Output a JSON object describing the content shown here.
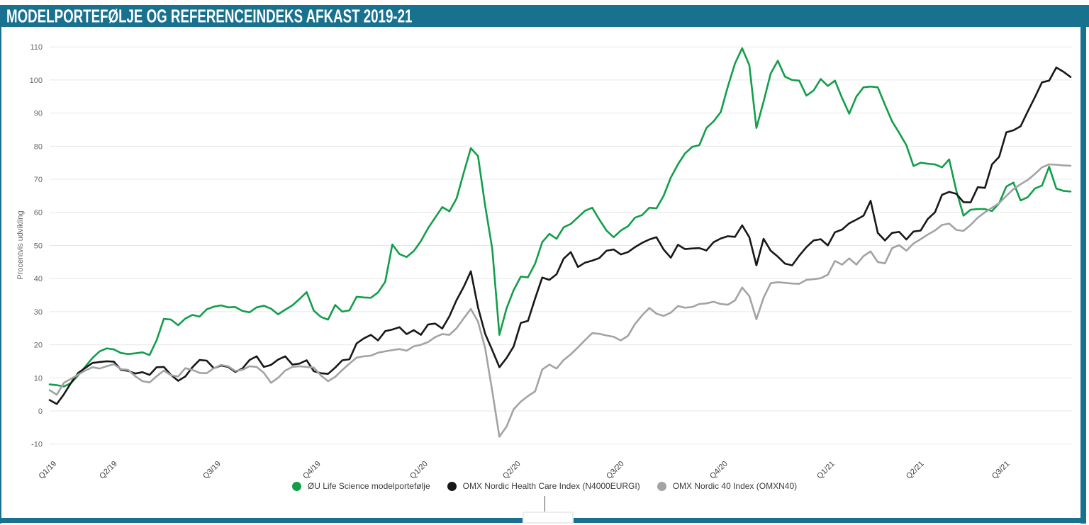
{
  "header": {
    "title": "MODELPORTEFØLJE OG REFERENCEINDEKS AFKAST 2019-21"
  },
  "colors": {
    "frame_teal": "#17718f",
    "green": "#129e4a",
    "black": "#181818",
    "gray": "#a3a3a3",
    "gridline": "#e7e7e7",
    "y_axis_text": "#666666",
    "x_axis_text": "#3c3c3c"
  },
  "chart_data": {
    "type": "line",
    "title": "MODELPORTEFØLJE OG REFERENCEINDEKS AFKAST 2019-21",
    "ylabel": "Procentvis udvikling",
    "xlabel": "",
    "ylim": [
      -10,
      110
    ],
    "yticks": [
      -10,
      0,
      10,
      20,
      30,
      40,
      50,
      60,
      70,
      80,
      90,
      100,
      110
    ],
    "grid": "horizontal",
    "legend_position": "bottom",
    "x_tick_labels": [
      "Q1/19",
      "Q2/19",
      "Q3/19",
      "Q4/19",
      "Q1/20",
      "Q2/20",
      "Q3/20",
      "Q4/20",
      "Q1/21",
      "Q2/21",
      "Q3/21"
    ],
    "x_tick_indices": [
      1,
      9.5,
      24,
      38,
      53,
      66,
      80.5,
      95,
      110,
      122.5,
      134.5
    ],
    "series": [
      {
        "name": "ØU Life Science modelportefølje",
        "color": "#129e4a",
        "values": [
          8,
          7.8,
          7.4,
          8.4,
          10.8,
          13.4,
          16,
          18,
          18.9,
          18.6,
          17.5,
          17.2,
          17.4,
          17.7,
          16.9,
          21.4,
          27.8,
          27.6,
          25.9,
          27.9,
          29,
          28.5,
          30.7,
          31.5,
          31.9,
          31.3,
          31.4,
          30.2,
          29.8,
          31.3,
          31.8,
          30.9,
          29.2,
          30.6,
          31.9,
          33.8,
          35.9,
          30.3,
          28.4,
          27.6,
          32,
          30,
          30.4,
          34.5,
          34.3,
          34.2,
          35.8,
          39,
          50.3,
          47.4,
          46.5,
          48.3,
          51.3,
          55.2,
          58.4,
          61.6,
          60.3,
          64.2,
          72,
          79.4,
          77,
          62,
          49,
          23,
          31,
          36.5,
          40.6,
          40.4,
          44.5,
          51,
          53.5,
          52,
          55.5,
          56.5,
          58.5,
          60.5,
          61.4,
          57.8,
          54.5,
          52.5,
          54.5,
          55.8,
          58.4,
          59.2,
          61.4,
          61.2,
          65,
          70.5,
          74.5,
          77.8,
          79.8,
          80.3,
          85.5,
          87.5,
          90.3,
          98,
          105,
          109.6,
          104.5,
          85.5,
          93.5,
          102,
          105.8,
          101,
          100,
          99.8,
          95.3,
          96.8,
          100.3,
          98.2,
          99.8,
          94.5,
          89.8,
          95,
          97.8,
          98,
          97.8,
          92.5,
          87.5,
          84,
          80.3,
          74,
          75,
          74.7,
          74.5,
          73.6,
          76,
          66.5,
          59,
          60.8,
          61,
          61,
          60.4,
          62.8,
          67.8,
          69,
          63.6,
          64.6,
          67.2,
          68.1,
          73.8,
          67.2,
          66.5,
          66.3
        ]
      },
      {
        "name": "OMX Nordic Health Care Index (N4000EURGI)",
        "color": "#181818",
        "values": [
          3.3,
          2.1,
          5,
          8.5,
          11.5,
          13,
          14.5,
          14.8,
          15,
          14.9,
          12.4,
          12.1,
          11.3,
          11.7,
          10.9,
          13.2,
          13.3,
          10.9,
          9.1,
          10.4,
          13.2,
          15.4,
          15.2,
          12.9,
          13.7,
          13.3,
          11.8,
          12.8,
          15.4,
          16.5,
          13.3,
          13.9,
          15.5,
          16.5,
          14,
          14.3,
          15.3,
          12,
          11.4,
          11.2,
          13.1,
          15.3,
          15.6,
          20.4,
          21.9,
          23,
          21.3,
          24.1,
          24.6,
          25.3,
          23.2,
          24.4,
          23,
          26.1,
          26.4,
          24.9,
          28.6,
          33.5,
          37.5,
          42.2,
          31.3,
          23.3,
          18.4,
          13.2,
          16,
          19.5,
          26.6,
          27.2,
          34,
          40.3,
          39.6,
          41.3,
          46,
          48,
          43.5,
          44.8,
          45.4,
          46.2,
          48.4,
          48.8,
          47.3,
          48,
          49.5,
          50.8,
          51.8,
          52.5,
          48.8,
          46.3,
          50.2,
          48.9,
          49.1,
          49.2,
          48.5,
          51,
          52.1,
          52.8,
          52.6,
          56.1,
          52.5,
          44,
          52,
          48.4,
          46.6,
          44.5,
          44,
          46.9,
          49.5,
          51.5,
          51.9,
          50,
          54,
          54.8,
          56.7,
          57.8,
          59,
          63.5,
          53.8,
          51.5,
          53.8,
          54.1,
          51.8,
          54.2,
          54.5,
          58,
          60,
          65.3,
          66.2,
          65.6,
          63.1,
          63,
          67.6,
          67.4,
          74.5,
          76.8,
          84.2,
          84.8,
          86,
          90.5,
          94.8,
          99.3,
          99.8,
          103.8,
          102.5,
          100.9
        ]
      },
      {
        "name": "OMX Nordic 40 Index (OMXN40)",
        "color": "#a3a3a3",
        "values": [
          6.3,
          4.9,
          8.5,
          9.7,
          11,
          12.2,
          13.2,
          12.8,
          13.5,
          14.1,
          12.6,
          12.4,
          10.5,
          9,
          8.6,
          10.5,
          12.2,
          10.8,
          10.4,
          12.9,
          12.4,
          11.5,
          11.4,
          12.9,
          13.9,
          13.5,
          12.1,
          12.4,
          13.5,
          13.3,
          11.5,
          8.5,
          10,
          12.2,
          13.3,
          13.5,
          13.3,
          13.1,
          10.7,
          9,
          10.3,
          12.4,
          14.3,
          16.1,
          16.5,
          16.7,
          17.6,
          18,
          18.4,
          18.7,
          18.2,
          19.5,
          20,
          20.8,
          22.3,
          23.2,
          23,
          25,
          28,
          30.8,
          27,
          19,
          6,
          -7.8,
          -4.7,
          0.5,
          2.8,
          4.5,
          5.9,
          12.5,
          14,
          12.8,
          15.4,
          17.1,
          19.2,
          21.4,
          23.5,
          23.3,
          22.8,
          22.4,
          21.3,
          22.7,
          26.3,
          28.9,
          31.1,
          29.4,
          28.7,
          29.7,
          31.7,
          31.2,
          31.4,
          32.3,
          32.5,
          33,
          32.3,
          32.1,
          33.4,
          37.3,
          34.7,
          27.7,
          34.2,
          38.6,
          38.9,
          38.7,
          38.5,
          38.4,
          39.6,
          39.8,
          40.1,
          41.2,
          45.3,
          44.2,
          46.1,
          44.2,
          46.8,
          48.2,
          45,
          44.6,
          49.2,
          50.1,
          48.4,
          50.6,
          51.9,
          53.3,
          54.5,
          56.2,
          56.6,
          54.7,
          54.4,
          56.2,
          58.4,
          60,
          61.4,
          62.8,
          65,
          67,
          68.5,
          69.8,
          71.6,
          73.6,
          74.5,
          74.4,
          74.2,
          74.1
        ]
      }
    ]
  }
}
